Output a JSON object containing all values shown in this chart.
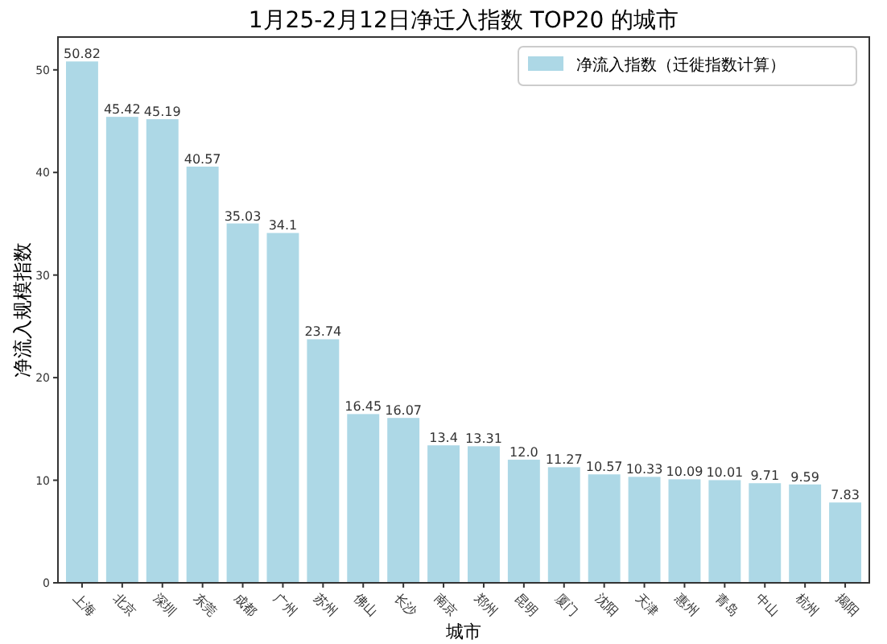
{
  "chart_data": {
    "type": "bar",
    "title": "1月25-2月12日净迁入指数 TOP20 的城市",
    "xlabel": "城市",
    "ylabel": "净流入规模指数",
    "categories": [
      "上海",
      "北京",
      "深圳",
      "东莞",
      "成都",
      "广州",
      "苏州",
      "佛山",
      "长沙",
      "南京",
      "郑州",
      "昆明",
      "厦门",
      "沈阳",
      "天津",
      "惠州",
      "青岛",
      "中山",
      "杭州",
      "揭阳"
    ],
    "series": [
      {
        "name": "净流入指数（迁徙指数计算）",
        "color": "#add8e6",
        "values": [
          50.82,
          45.42,
          45.19,
          40.57,
          35.03,
          34.1,
          23.74,
          16.45,
          16.07,
          13.4,
          13.31,
          12.0,
          11.27,
          10.57,
          10.33,
          10.09,
          10.01,
          9.71,
          9.59,
          7.83
        ],
        "value_labels": [
          "50.82",
          "45.42",
          "45.19",
          "40.57",
          "35.03",
          "34.1",
          "23.74",
          "16.45",
          "16.07",
          "13.4",
          "13.31",
          "12.0",
          "11.27",
          "10.57",
          "10.33",
          "10.09",
          "10.01",
          "9.71",
          "9.59",
          "7.83"
        ]
      }
    ],
    "ylim": [
      0,
      53.2
    ],
    "yticks": [
      0,
      10,
      20,
      30,
      40,
      50
    ],
    "legend": "top right",
    "grid": false
  }
}
